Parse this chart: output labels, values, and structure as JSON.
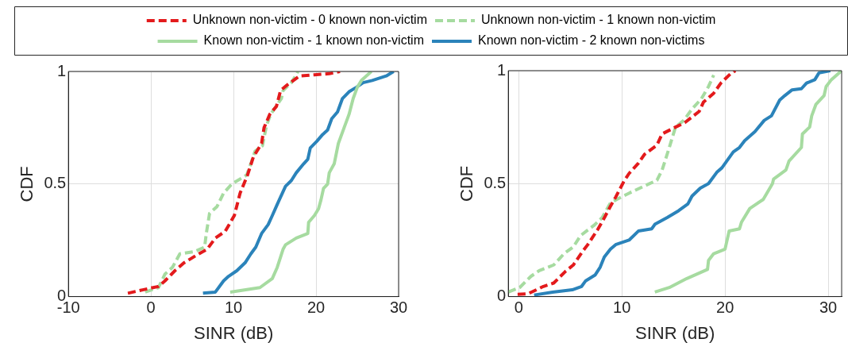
{
  "chart_data": [
    {
      "type": "line",
      "xlabel": "SINR (dB)",
      "ylabel": "CDF",
      "xlim": [
        -10,
        30
      ],
      "xticks": [
        -10,
        0,
        10,
        20,
        30
      ],
      "ylim": [
        0,
        1
      ],
      "yticks": [
        0,
        0.5,
        1
      ],
      "grid": true,
      "legend": "top",
      "marker": "none",
      "series": [
        {
          "name": "Unknown non-victim - 0 known non-victim",
          "color": "#e31a1c",
          "line_style": "dashed",
          "x": [
            -2.8,
            -1.0,
            0.9,
            1.7,
            2.9,
            4.0,
            5.8,
            6.8,
            7.8,
            9.0,
            10.1,
            10.8,
            11.7,
            12.4,
            13.4,
            13.7,
            14.4,
            15.2,
            15.7,
            16.5,
            18.0,
            19.8,
            21.6,
            22.9
          ],
          "values": [
            0.015,
            0.03,
            0.045,
            0.07,
            0.115,
            0.15,
            0.19,
            0.21,
            0.26,
            0.29,
            0.36,
            0.46,
            0.54,
            0.62,
            0.68,
            0.75,
            0.81,
            0.845,
            0.915,
            0.94,
            0.98,
            0.985,
            0.99,
            1.0
          ]
        },
        {
          "name": "Unknown non-victim - 1 known non-victim",
          "color": "#a6dba0",
          "line_style": "dashed",
          "x": [
            -0.7,
            0.9,
            1.7,
            2.6,
            3.5,
            5.3,
            6.5,
            6.7,
            7.1,
            8.0,
            8.8,
            9.8,
            11.6,
            12.1,
            12.6,
            13.5,
            14.0,
            14.5,
            15.8,
            16.0,
            17.0,
            17.6,
            17.8
          ],
          "values": [
            0.02,
            0.04,
            0.1,
            0.13,
            0.19,
            0.2,
            0.22,
            0.28,
            0.37,
            0.4,
            0.46,
            0.5,
            0.54,
            0.59,
            0.645,
            0.67,
            0.76,
            0.81,
            0.88,
            0.915,
            0.95,
            0.985,
            1.0
          ]
        },
        {
          "name": "Known non-victim - 1 known non-victim",
          "color": "#a6dba0",
          "line_style": "solid",
          "x": [
            9.6,
            13.2,
            14.7,
            15.3,
            16.0,
            16.3,
            17.6,
            19.0,
            19.1,
            19.8,
            20.3,
            20.6,
            20.9,
            21.4,
            21.6,
            22.2,
            22.7,
            23.4,
            24.0,
            24.5,
            25.0,
            25.5,
            26.7
          ],
          "values": [
            0.02,
            0.04,
            0.08,
            0.13,
            0.21,
            0.23,
            0.26,
            0.28,
            0.33,
            0.36,
            0.39,
            0.43,
            0.48,
            0.5,
            0.55,
            0.59,
            0.68,
            0.75,
            0.81,
            0.88,
            0.93,
            0.96,
            1.0
          ]
        },
        {
          "name": "Known non-victim - 2 known non-victims",
          "color": "#2b83ba",
          "line_style": "solid",
          "x": [
            6.3,
            7.8,
            8.8,
            9.4,
            10.4,
            11.4,
            12.1,
            12.7,
            13.4,
            14.2,
            14.7,
            15.3,
            16.3,
            17.0,
            17.6,
            18.5,
            19.0,
            19.3,
            20.1,
            20.8,
            21.4,
            21.9,
            22.6,
            23.2,
            24.0,
            24.9,
            25.7,
            26.8,
            28.5,
            29.4
          ],
          "values": [
            0.015,
            0.02,
            0.07,
            0.09,
            0.115,
            0.15,
            0.19,
            0.22,
            0.28,
            0.32,
            0.36,
            0.41,
            0.49,
            0.515,
            0.55,
            0.59,
            0.61,
            0.66,
            0.69,
            0.72,
            0.74,
            0.79,
            0.82,
            0.88,
            0.91,
            0.93,
            0.95,
            0.96,
            0.98,
            1.0
          ]
        }
      ]
    },
    {
      "type": "line",
      "xlabel": "SINR (dB)",
      "ylabel": "CDF",
      "xlim": [
        -1,
        31.3
      ],
      "xticks": [
        0,
        10,
        20,
        30
      ],
      "ylim": [
        0,
        1
      ],
      "yticks": [
        0,
        0.5,
        1
      ],
      "grid": true,
      "marker": "none",
      "series": [
        {
          "color": "#e31a1c",
          "line_style": "dashed",
          "x": [
            -0.1,
            0.9,
            2.4,
            3.4,
            4.5,
            5.3,
            6.2,
            6.7,
            7.7,
            8.2,
            8.9,
            9.4,
            10.2,
            10.7,
            11.6,
            12.2,
            13.4,
            13.9,
            15.2,
            16.1,
            17.5,
            17.9,
            18.9,
            19.6,
            20.5,
            21.0
          ],
          "values": [
            0.01,
            0.012,
            0.045,
            0.06,
            0.11,
            0.14,
            0.2,
            0.23,
            0.3,
            0.34,
            0.4,
            0.44,
            0.51,
            0.545,
            0.59,
            0.63,
            0.67,
            0.72,
            0.75,
            0.77,
            0.82,
            0.86,
            0.9,
            0.945,
            0.985,
            1.0
          ]
        },
        {
          "color": "#a6dba0",
          "line_style": "dashed",
          "x": [
            -1.0,
            0.1,
            1.2,
            2.0,
            3.4,
            4.4,
            5.3,
            6.0,
            7.3,
            8.1,
            8.9,
            9.5,
            10.8,
            12.2,
            13.4,
            13.9,
            14.6,
            15.2,
            16.0,
            16.8,
            17.7,
            18.4,
            18.9
          ],
          "values": [
            0.02,
            0.04,
            0.09,
            0.115,
            0.14,
            0.19,
            0.22,
            0.27,
            0.315,
            0.35,
            0.415,
            0.43,
            0.46,
            0.49,
            0.515,
            0.56,
            0.66,
            0.75,
            0.78,
            0.83,
            0.875,
            0.93,
            0.98
          ]
        },
        {
          "color": "#a6dba0",
          "line_style": "solid",
          "x": [
            13.2,
            14.6,
            16.3,
            18.3,
            18.4,
            18.9,
            20.0,
            20.4,
            21.4,
            21.6,
            22.4,
            23.7,
            24.6,
            24.7,
            25.9,
            26.2,
            27.4,
            27.5,
            28.2,
            28.4,
            28.8,
            29.6,
            29.8,
            30.3,
            31.3
          ],
          "values": [
            0.02,
            0.04,
            0.08,
            0.12,
            0.16,
            0.19,
            0.21,
            0.29,
            0.3,
            0.33,
            0.39,
            0.43,
            0.5,
            0.52,
            0.56,
            0.6,
            0.66,
            0.72,
            0.75,
            0.8,
            0.85,
            0.89,
            0.93,
            0.96,
            1.0
          ]
        },
        {
          "color": "#2b83ba",
          "line_style": "solid",
          "x": [
            1.5,
            3.3,
            5.2,
            6.1,
            6.5,
            7.4,
            7.9,
            8.3,
            8.9,
            9.4,
            10.7,
            11.6,
            12.9,
            13.2,
            14.4,
            15.5,
            16.4,
            16.8,
            17.6,
            18.4,
            19.2,
            19.7,
            20.8,
            21.4,
            21.9,
            22.9,
            23.8,
            24.5,
            25.3,
            25.8,
            26.5,
            27.4,
            27.9,
            28.7,
            29.1,
            30.2
          ],
          "values": [
            0.007,
            0.02,
            0.03,
            0.045,
            0.07,
            0.095,
            0.13,
            0.175,
            0.21,
            0.23,
            0.25,
            0.29,
            0.3,
            0.32,
            0.35,
            0.38,
            0.41,
            0.445,
            0.48,
            0.5,
            0.55,
            0.57,
            0.64,
            0.66,
            0.69,
            0.73,
            0.78,
            0.8,
            0.87,
            0.89,
            0.915,
            0.92,
            0.945,
            0.96,
            0.99,
            1.0
          ]
        }
      ]
    }
  ]
}
